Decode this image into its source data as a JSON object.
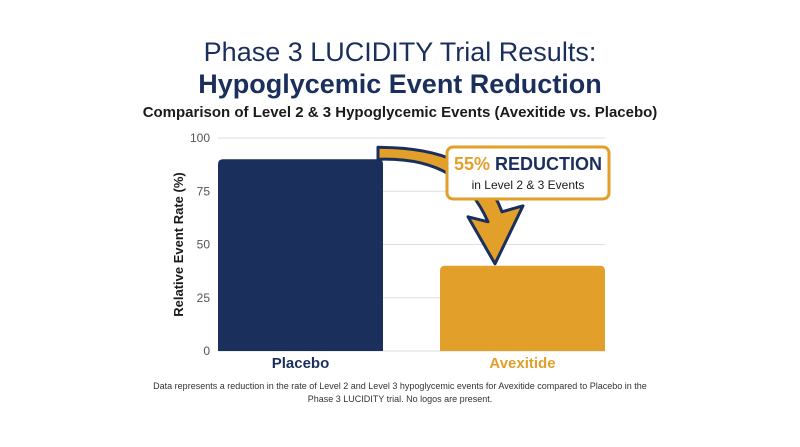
{
  "title": {
    "line1": "Phase 3 LUCIDITY Trial Results:",
    "line2": "Hypoglycemic Event Reduction"
  },
  "subtitle": "Comparison of Level 2 & 3 Hypoglycemic Events (Avexitide vs. Placebo)",
  "footnote": "Data represents a reduction in the rate of Level 2 and Level 3 hypoglycemic events for Avexitide compared to Placebo in the Phase 3 LUCIDITY trial. No logos are present.",
  "callout": {
    "percent": "55%",
    "word": "REDUCTION",
    "detail": "in Level 2 & 3 Events"
  },
  "colors": {
    "placebo": "#1b2f5c",
    "avexitide": "#e29f2a",
    "title": "#1b2f5c",
    "callout_border": "#e29f2a"
  },
  "chart_data": {
    "type": "bar",
    "categories": [
      "Placebo",
      "Avexitide"
    ],
    "values": [
      90,
      40
    ],
    "ylabel": "Relative Event Rate (%)",
    "ylim": [
      0,
      100
    ],
    "yticks": [
      0,
      25,
      50,
      75,
      100
    ],
    "grid": true,
    "annotation": "55% REDUCTION in Level 2 & 3 Events"
  }
}
